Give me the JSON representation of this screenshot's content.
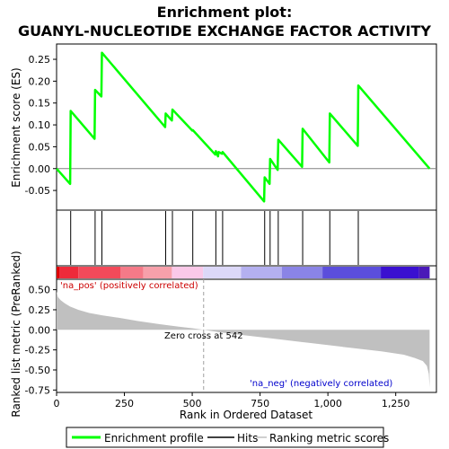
{
  "chart_data": {
    "title": "Enrichment plot: GUANYL-NUCLEOTIDE EXCHANGE FACTOR ACTIVITY",
    "xlabel": "Rank in Ordered Dataset",
    "xlim": [
      0,
      1400
    ],
    "x_ticks": [
      0,
      250,
      500,
      750,
      1000,
      1250
    ],
    "top": {
      "type": "line",
      "ylabel": "Enrichment score (ES)",
      "ylim": [
        -0.095,
        0.285
      ],
      "y_ticks": [
        -0.05,
        0.0,
        0.05,
        0.1,
        0.15,
        0.2,
        0.25
      ],
      "series": [
        {
          "name": "Enrichment profile",
          "color": "#00ff00",
          "x": [
            0,
            50,
            52,
            140,
            142,
            165,
            167,
            400,
            402,
            425,
            427,
            500,
            502,
            585,
            587,
            595,
            597,
            610,
            612,
            765,
            767,
            785,
            787,
            815,
            817,
            905,
            907,
            1005,
            1007,
            1110,
            1112,
            1375
          ],
          "y": [
            0.0,
            -0.035,
            0.132,
            0.068,
            0.18,
            0.165,
            0.265,
            0.095,
            0.126,
            0.11,
            0.135,
            0.087,
            0.088,
            0.032,
            0.04,
            0.028,
            0.038,
            0.034,
            0.038,
            -0.075,
            -0.02,
            -0.035,
            0.022,
            -0.003,
            0.066,
            0.004,
            0.091,
            0.014,
            0.126,
            0.052,
            0.19,
            0.0
          ]
        }
      ]
    },
    "hits": {
      "name": "Hits",
      "positions": [
        52,
        142,
        167,
        402,
        427,
        502,
        587,
        612,
        767,
        787,
        817,
        907,
        1007,
        1112
      ]
    },
    "colorbar": {
      "segments": [
        {
          "x0": 0,
          "x1": 10,
          "color": "#dd0000"
        },
        {
          "x0": 10,
          "x1": 80,
          "color": "#ee2a3a"
        },
        {
          "x0": 80,
          "x1": 235,
          "color": "#f34a5a"
        },
        {
          "x0": 235,
          "x1": 320,
          "color": "#f57a88"
        },
        {
          "x0": 320,
          "x1": 425,
          "color": "#f7a0aa"
        },
        {
          "x0": 425,
          "x1": 540,
          "color": "#fac8e8"
        },
        {
          "x0": 540,
          "x1": 680,
          "color": "#dcd8f8"
        },
        {
          "x0": 680,
          "x1": 830,
          "color": "#b4b0f0"
        },
        {
          "x0": 830,
          "x1": 980,
          "color": "#8a84e6"
        },
        {
          "x0": 980,
          "x1": 1195,
          "color": "#5b4edc"
        },
        {
          "x0": 1195,
          "x1": 1335,
          "color": "#3a10d0"
        },
        {
          "x0": 1335,
          "x1": 1375,
          "color": "#4a18b8"
        }
      ]
    },
    "bottom": {
      "type": "area",
      "ylabel": "Ranked list metric (PreRanked)",
      "ylim": [
        -0.78,
        0.63
      ],
      "y_ticks": [
        -0.75,
        -0.5,
        -0.25,
        0.0,
        0.25,
        0.5
      ],
      "series": [
        {
          "name": "Ranking metric scores",
          "color": "#c0c0c0",
          "x": [
            0,
            5,
            15,
            30,
            50,
            80,
            120,
            170,
            230,
            300,
            380,
            450,
            500,
            542,
            600,
            700,
            800,
            900,
            1000,
            1100,
            1200,
            1280,
            1320,
            1350,
            1365,
            1372,
            1375
          ],
          "y": [
            0.48,
            0.41,
            0.37,
            0.33,
            0.29,
            0.25,
            0.21,
            0.18,
            0.15,
            0.11,
            0.07,
            0.04,
            0.02,
            0.0,
            -0.03,
            -0.07,
            -0.11,
            -0.15,
            -0.19,
            -0.23,
            -0.27,
            -0.31,
            -0.35,
            -0.39,
            -0.45,
            -0.55,
            -0.72
          ]
        }
      ],
      "zero_cross_label": "Zero cross at 542",
      "zero_cross": 542,
      "pos_label": "'na_pos' (positively correlated)",
      "neg_label": "'na_neg' (negatively correlated)"
    },
    "legend": {
      "placement": "bottom",
      "items": [
        "Enrichment profile",
        "Hits",
        "Ranking metric scores"
      ]
    }
  }
}
